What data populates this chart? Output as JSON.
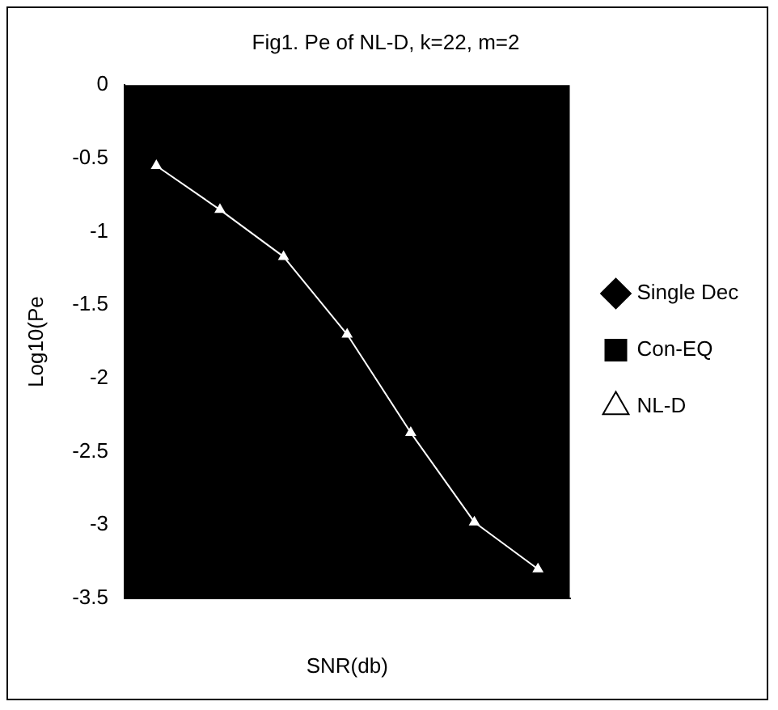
{
  "chart_data": {
    "type": "line",
    "title": "Fig1. Pe of NL-D, k=22, m=2",
    "xlabel": "SNR(db)",
    "ylabel": "Log10(Pe",
    "categories": [
      null,
      null,
      null,
      null,
      null,
      null,
      null
    ],
    "series": [
      {
        "name": "Single Dec",
        "color": "#000000",
        "marker": "diamond",
        "values": [
          null,
          null,
          null,
          null,
          null,
          null,
          null
        ]
      },
      {
        "name": "Con-EQ",
        "color": "#000000",
        "marker": "square",
        "values": [
          null,
          null,
          null,
          null,
          null,
          null,
          null
        ]
      },
      {
        "name": "NL-D",
        "color": "#ffffff",
        "marker": "triangle",
        "values": [
          -0.55,
          -0.85,
          -1.17,
          -1.7,
          -2.37,
          -2.98,
          -3.3
        ]
      }
    ],
    "ylim": [
      -3.5,
      0
    ],
    "yticks": [
      0,
      -0.5,
      -1,
      -1.5,
      -2,
      -2.5,
      -3,
      -3.5
    ],
    "grid": false,
    "legend": "right"
  }
}
